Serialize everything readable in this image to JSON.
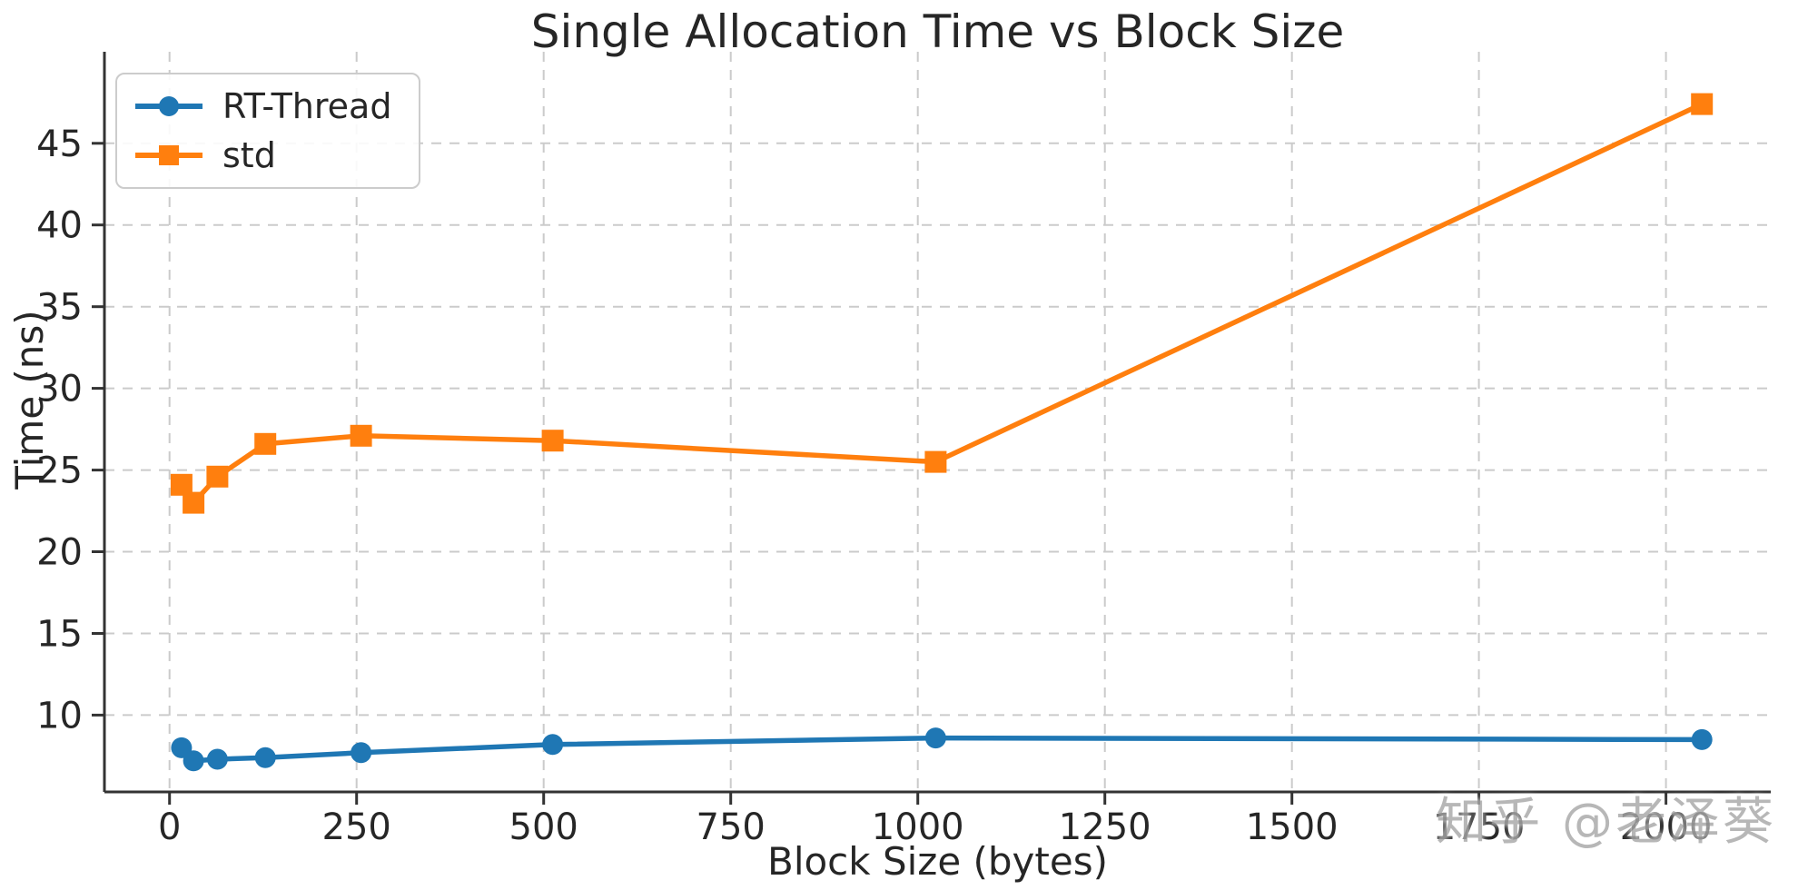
{
  "title": "Single Allocation Time vs Block Size",
  "watermark": "知乎 @老泽葵",
  "colors": {
    "axis_text": "#262626",
    "grid": "#cbcbcb",
    "spine": "#333333",
    "watermark": "#a8a8a8",
    "background": "#ffffff"
  },
  "chart_data": {
    "type": "line",
    "title": "Single Allocation Time vs Block Size",
    "xlabel": "Block Size (bytes)",
    "ylabel": "Time (ns)",
    "x": [
      16,
      32,
      64,
      128,
      256,
      512,
      1024,
      2048
    ],
    "series": [
      {
        "name": "RT-Thread",
        "color": "#1f77b4",
        "marker": "circle",
        "values": [
          8.0,
          7.2,
          7.3,
          7.4,
          7.7,
          8.2,
          8.6,
          8.5
        ]
      },
      {
        "name": "std",
        "color": "#ff7f0e",
        "marker": "square",
        "values": [
          24.1,
          23.0,
          24.6,
          26.6,
          27.1,
          26.8,
          25.5,
          47.4
        ]
      }
    ],
    "xticks": [
      0,
      250,
      500,
      750,
      1000,
      1250,
      1500,
      1750,
      2000
    ],
    "yticks": [
      10,
      15,
      20,
      25,
      30,
      35,
      40,
      45
    ],
    "xlim": [
      -87,
      2140
    ],
    "ylim": [
      5.3,
      50.6
    ],
    "grid": true,
    "legend_position": "upper-left"
  }
}
